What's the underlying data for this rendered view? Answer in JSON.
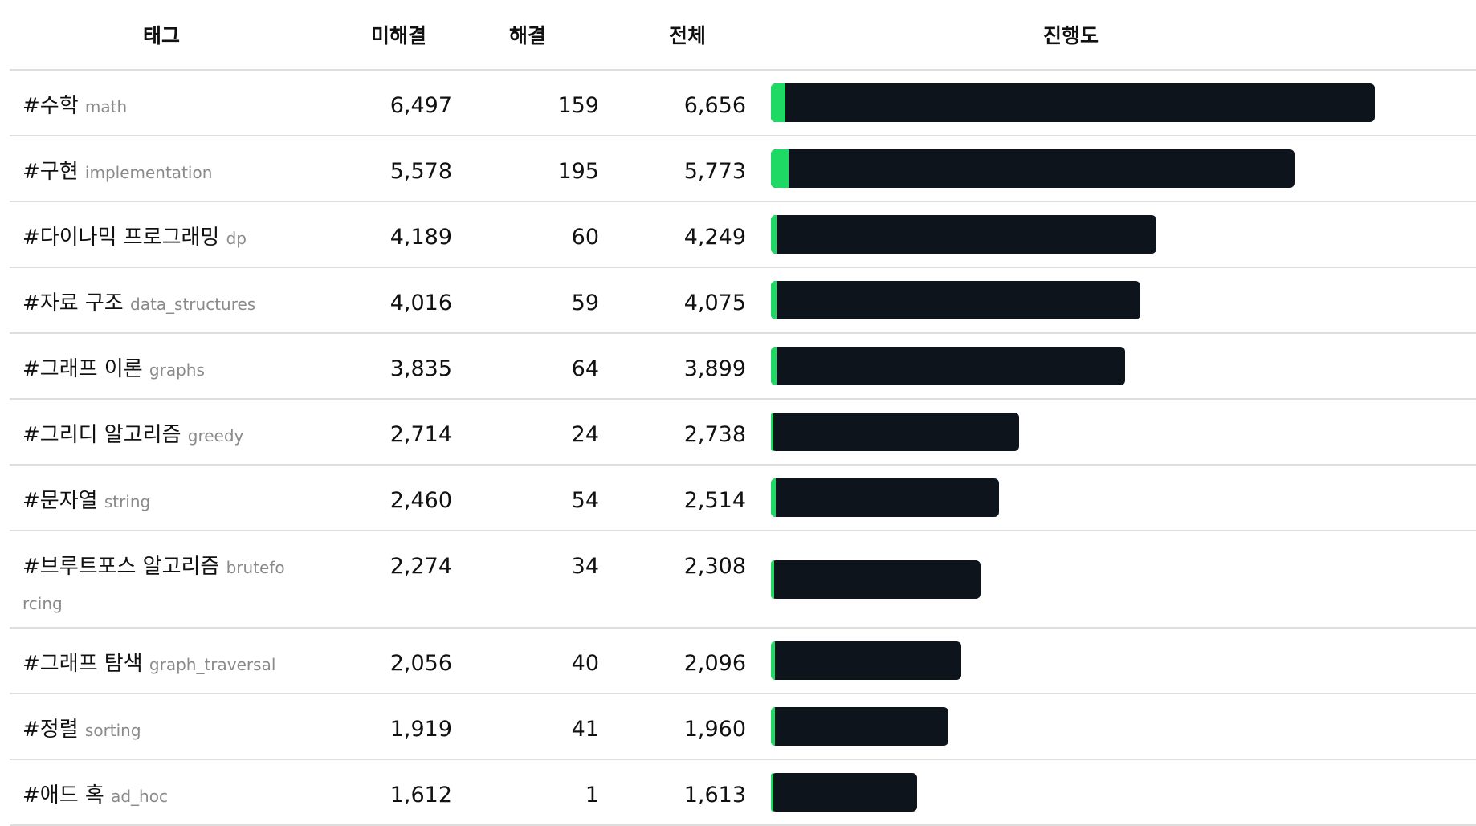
{
  "columns": {
    "tag": "태그",
    "unsolved": "미해결",
    "solved": "해결",
    "total": "전체",
    "progress": "진행도"
  },
  "colors": {
    "bar_background": "#0d141b",
    "bar_fill": "#1fd965",
    "row_divider": "#dedede",
    "tag_english": "#8a8a8a"
  },
  "rows": [
    {
      "tag_ko": "#수학",
      "tag_en": "math",
      "unsolved": "6,497",
      "solved": "159",
      "total": "6,656",
      "total_value": 6656,
      "solved_value": 159
    },
    {
      "tag_ko": "#구현",
      "tag_en": "implementation",
      "unsolved": "5,578",
      "solved": "195",
      "total": "5,773",
      "total_value": 5773,
      "solved_value": 195
    },
    {
      "tag_ko": "#다이나믹 프로그래밍",
      "tag_en": "dp",
      "unsolved": "4,189",
      "solved": "60",
      "total": "4,249",
      "total_value": 4249,
      "solved_value": 60
    },
    {
      "tag_ko": "#자료 구조",
      "tag_en": "data_structures",
      "unsolved": "4,016",
      "solved": "59",
      "total": "4,075",
      "total_value": 4075,
      "solved_value": 59
    },
    {
      "tag_ko": "#그래프 이론",
      "tag_en": "graphs",
      "unsolved": "3,835",
      "solved": "64",
      "total": "3,899",
      "total_value": 3899,
      "solved_value": 64
    },
    {
      "tag_ko": "#그리디 알고리즘",
      "tag_en": "greedy",
      "unsolved": "2,714",
      "solved": "24",
      "total": "2,738",
      "total_value": 2738,
      "solved_value": 24
    },
    {
      "tag_ko": "#문자열",
      "tag_en": "string",
      "unsolved": "2,460",
      "solved": "54",
      "total": "2,514",
      "total_value": 2514,
      "solved_value": 54
    },
    {
      "tag_ko": "#브루트포스 알고리즘",
      "tag_en": "bruteforcing",
      "unsolved": "2,274",
      "solved": "34",
      "total": "2,308",
      "total_value": 2308,
      "solved_value": 34
    },
    {
      "tag_ko": "#그래프 탐색",
      "tag_en": "graph_traversal",
      "unsolved": "2,056",
      "solved": "40",
      "total": "2,096",
      "total_value": 2096,
      "solved_value": 40
    },
    {
      "tag_ko": "#정렬",
      "tag_en": "sorting",
      "unsolved": "1,919",
      "solved": "41",
      "total": "1,960",
      "total_value": 1960,
      "solved_value": 41
    },
    {
      "tag_ko": "#애드 혹",
      "tag_en": "ad_hoc",
      "unsolved": "1,612",
      "solved": "1",
      "total": "1,613",
      "total_value": 1613,
      "solved_value": 1
    }
  ]
}
